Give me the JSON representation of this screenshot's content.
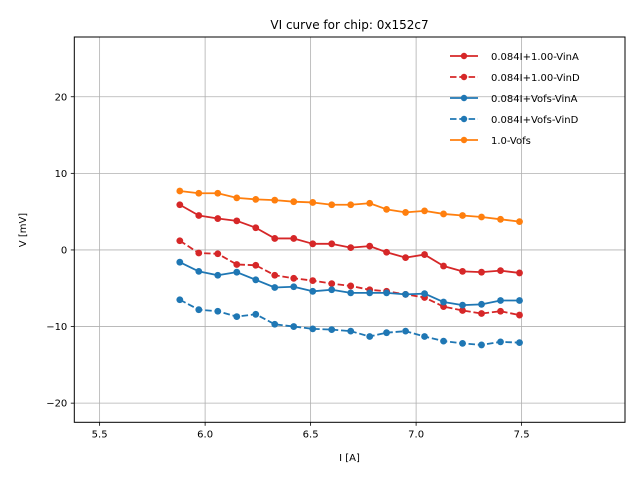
{
  "chart_data": {
    "type": "line",
    "title": "VI curve for chip: 0x152c7",
    "xlabel": "I [A]",
    "ylabel": "V [mV]",
    "xlim": [
      5.38,
      7.99
    ],
    "ylim": [
      -22.5,
      27.8
    ],
    "xticks": [
      5.5,
      6.0,
      6.5,
      7.0,
      7.5
    ],
    "xtick_labels": [
      "5.5",
      "6.0",
      "6.5",
      "7.0",
      "7.5"
    ],
    "yticks": [
      -20,
      -10,
      0,
      10,
      20
    ],
    "ytick_labels": [
      "−20",
      "−10",
      "0",
      "10",
      "20"
    ],
    "grid": true,
    "legend_position": "top-right",
    "x": [
      5.88,
      5.97,
      6.06,
      6.15,
      6.24,
      6.33,
      6.42,
      6.51,
      6.6,
      6.69,
      6.78,
      6.86,
      6.95,
      7.04,
      7.13,
      7.22,
      7.31,
      7.4,
      7.49
    ],
    "series": [
      {
        "name": "0.084I+1.00-VinA",
        "color": "#d62728",
        "linestyle": "solid",
        "values": [
          5.9,
          4.5,
          4.1,
          3.8,
          2.9,
          1.5,
          1.5,
          0.8,
          0.8,
          0.3,
          0.5,
          -0.3,
          -1.0,
          -0.6,
          -2.1,
          -2.8,
          -2.9,
          -2.7,
          -3.0
        ]
      },
      {
        "name": "0.084I+1.00-VinD",
        "color": "#d62728",
        "linestyle": "dashed",
        "values": [
          1.2,
          -0.4,
          -0.5,
          -1.9,
          -2.0,
          -3.3,
          -3.7,
          -4.0,
          -4.4,
          -4.7,
          -5.2,
          -5.4,
          -5.8,
          -6.2,
          -7.4,
          -7.9,
          -8.3,
          -8.0,
          -8.5
        ]
      },
      {
        "name": "0.084I+Vofs-VinA",
        "color": "#1f77b4",
        "linestyle": "solid",
        "values": [
          -1.6,
          -2.8,
          -3.3,
          -2.9,
          -3.9,
          -4.9,
          -4.8,
          -5.4,
          -5.2,
          -5.6,
          -5.6,
          -5.6,
          -5.8,
          -5.7,
          -6.8,
          -7.2,
          -7.1,
          -6.6,
          -6.6
        ]
      },
      {
        "name": "0.084I+Vofs-VinD",
        "color": "#1f77b4",
        "linestyle": "dashed",
        "values": [
          -6.5,
          -7.8,
          -8.0,
          -8.7,
          -8.4,
          -9.7,
          -10.0,
          -10.3,
          -10.4,
          -10.6,
          -11.3,
          -10.8,
          -10.6,
          -11.3,
          -11.9,
          -12.2,
          -12.4,
          -12.0,
          -12.1
        ]
      },
      {
        "name": "1.0-Vofs",
        "color": "#ff7f0e",
        "linestyle": "solid",
        "values": [
          7.7,
          7.4,
          7.4,
          6.8,
          6.6,
          6.5,
          6.3,
          6.2,
          5.9,
          5.9,
          6.1,
          5.3,
          4.9,
          5.1,
          4.7,
          4.5,
          4.3,
          4.0,
          3.7
        ]
      }
    ]
  }
}
